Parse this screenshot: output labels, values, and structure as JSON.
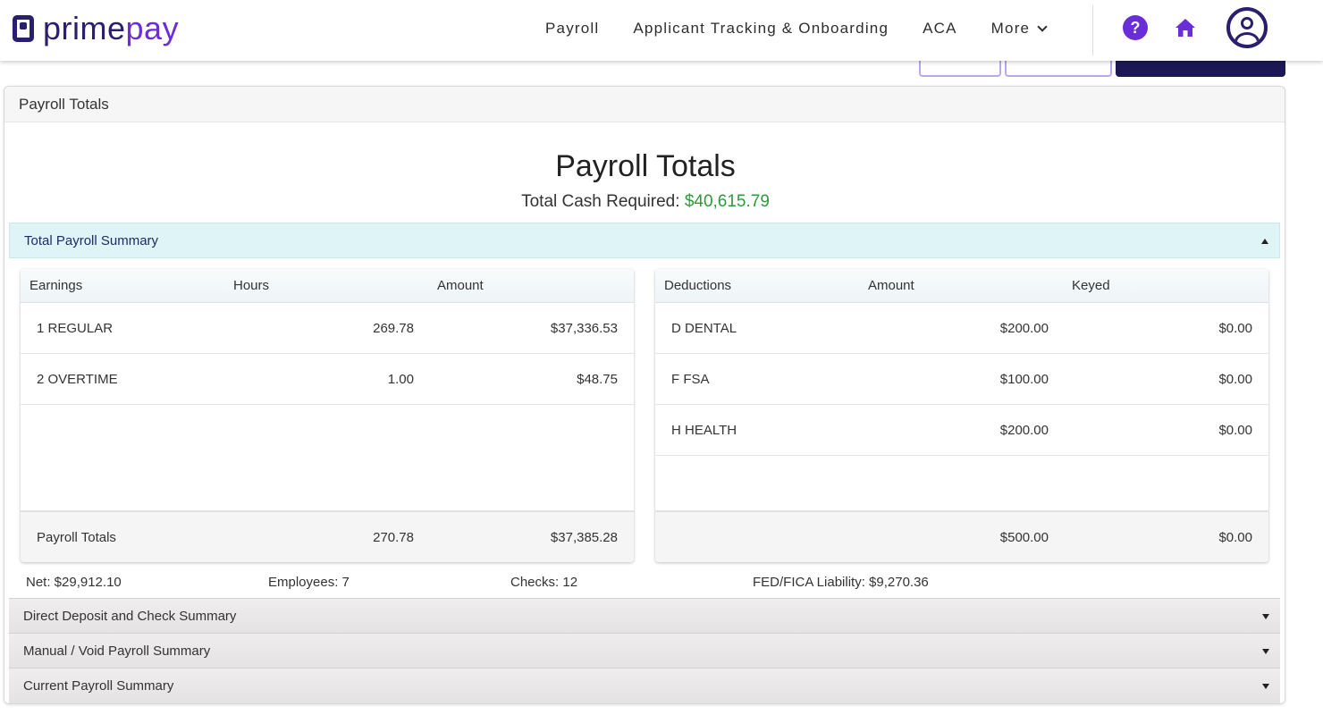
{
  "brand": {
    "prime": "prime",
    "pay": "pay"
  },
  "nav": {
    "links": [
      {
        "label": "Payroll"
      },
      {
        "label": "Applicant Tracking & Onboarding"
      },
      {
        "label": "ACA"
      },
      {
        "label": "More"
      }
    ],
    "help_glyph": "?"
  },
  "actions": {
    "back_label": "",
    "exit_label": "",
    "primary_label": ""
  },
  "card": {
    "header": "Payroll Totals",
    "title": "Payroll Totals",
    "cash_label": "Total Cash Required:",
    "cash_value": "$40,615.79"
  },
  "summary": {
    "section_title": "Total Payroll Summary",
    "earnings": {
      "headers": [
        "Earnings",
        "Hours",
        "Amount"
      ],
      "rows": [
        {
          "name": "1 REGULAR",
          "hours": "269.78",
          "amount": "$37,336.53"
        },
        {
          "name": "2 OVERTIME",
          "hours": "1.00",
          "amount": "$48.75"
        }
      ],
      "totals": {
        "label": "Payroll Totals",
        "hours": "270.78",
        "amount": "$37,385.28"
      }
    },
    "deductions": {
      "headers": [
        "Deductions",
        "Amount",
        "Keyed"
      ],
      "rows": [
        {
          "name": "D DENTAL",
          "amount": "$200.00",
          "keyed": "$0.00"
        },
        {
          "name": "F FSA",
          "amount": "$100.00",
          "keyed": "$0.00"
        },
        {
          "name": "H HEALTH",
          "amount": "$200.00",
          "keyed": "$0.00"
        }
      ],
      "totals": {
        "amount": "$500.00",
        "keyed": "$0.00"
      }
    },
    "stats": {
      "net": "Net: $29,912.10",
      "employees": "Employees: 7",
      "checks": "Checks: 12",
      "liability": "FED/FICA Liability: $9,270.36"
    }
  },
  "collapsed_sections": [
    {
      "title": "Direct Deposit and Check Summary"
    },
    {
      "title": "Manual / Void Payroll Summary"
    },
    {
      "title": "Current Payroll Summary"
    }
  ],
  "colors": {
    "brand_dark": "#2a1f6e",
    "brand_purple": "#6a2ed8",
    "money_green": "#2f9a3a",
    "accordion_open_bg": "#dff4f6"
  }
}
